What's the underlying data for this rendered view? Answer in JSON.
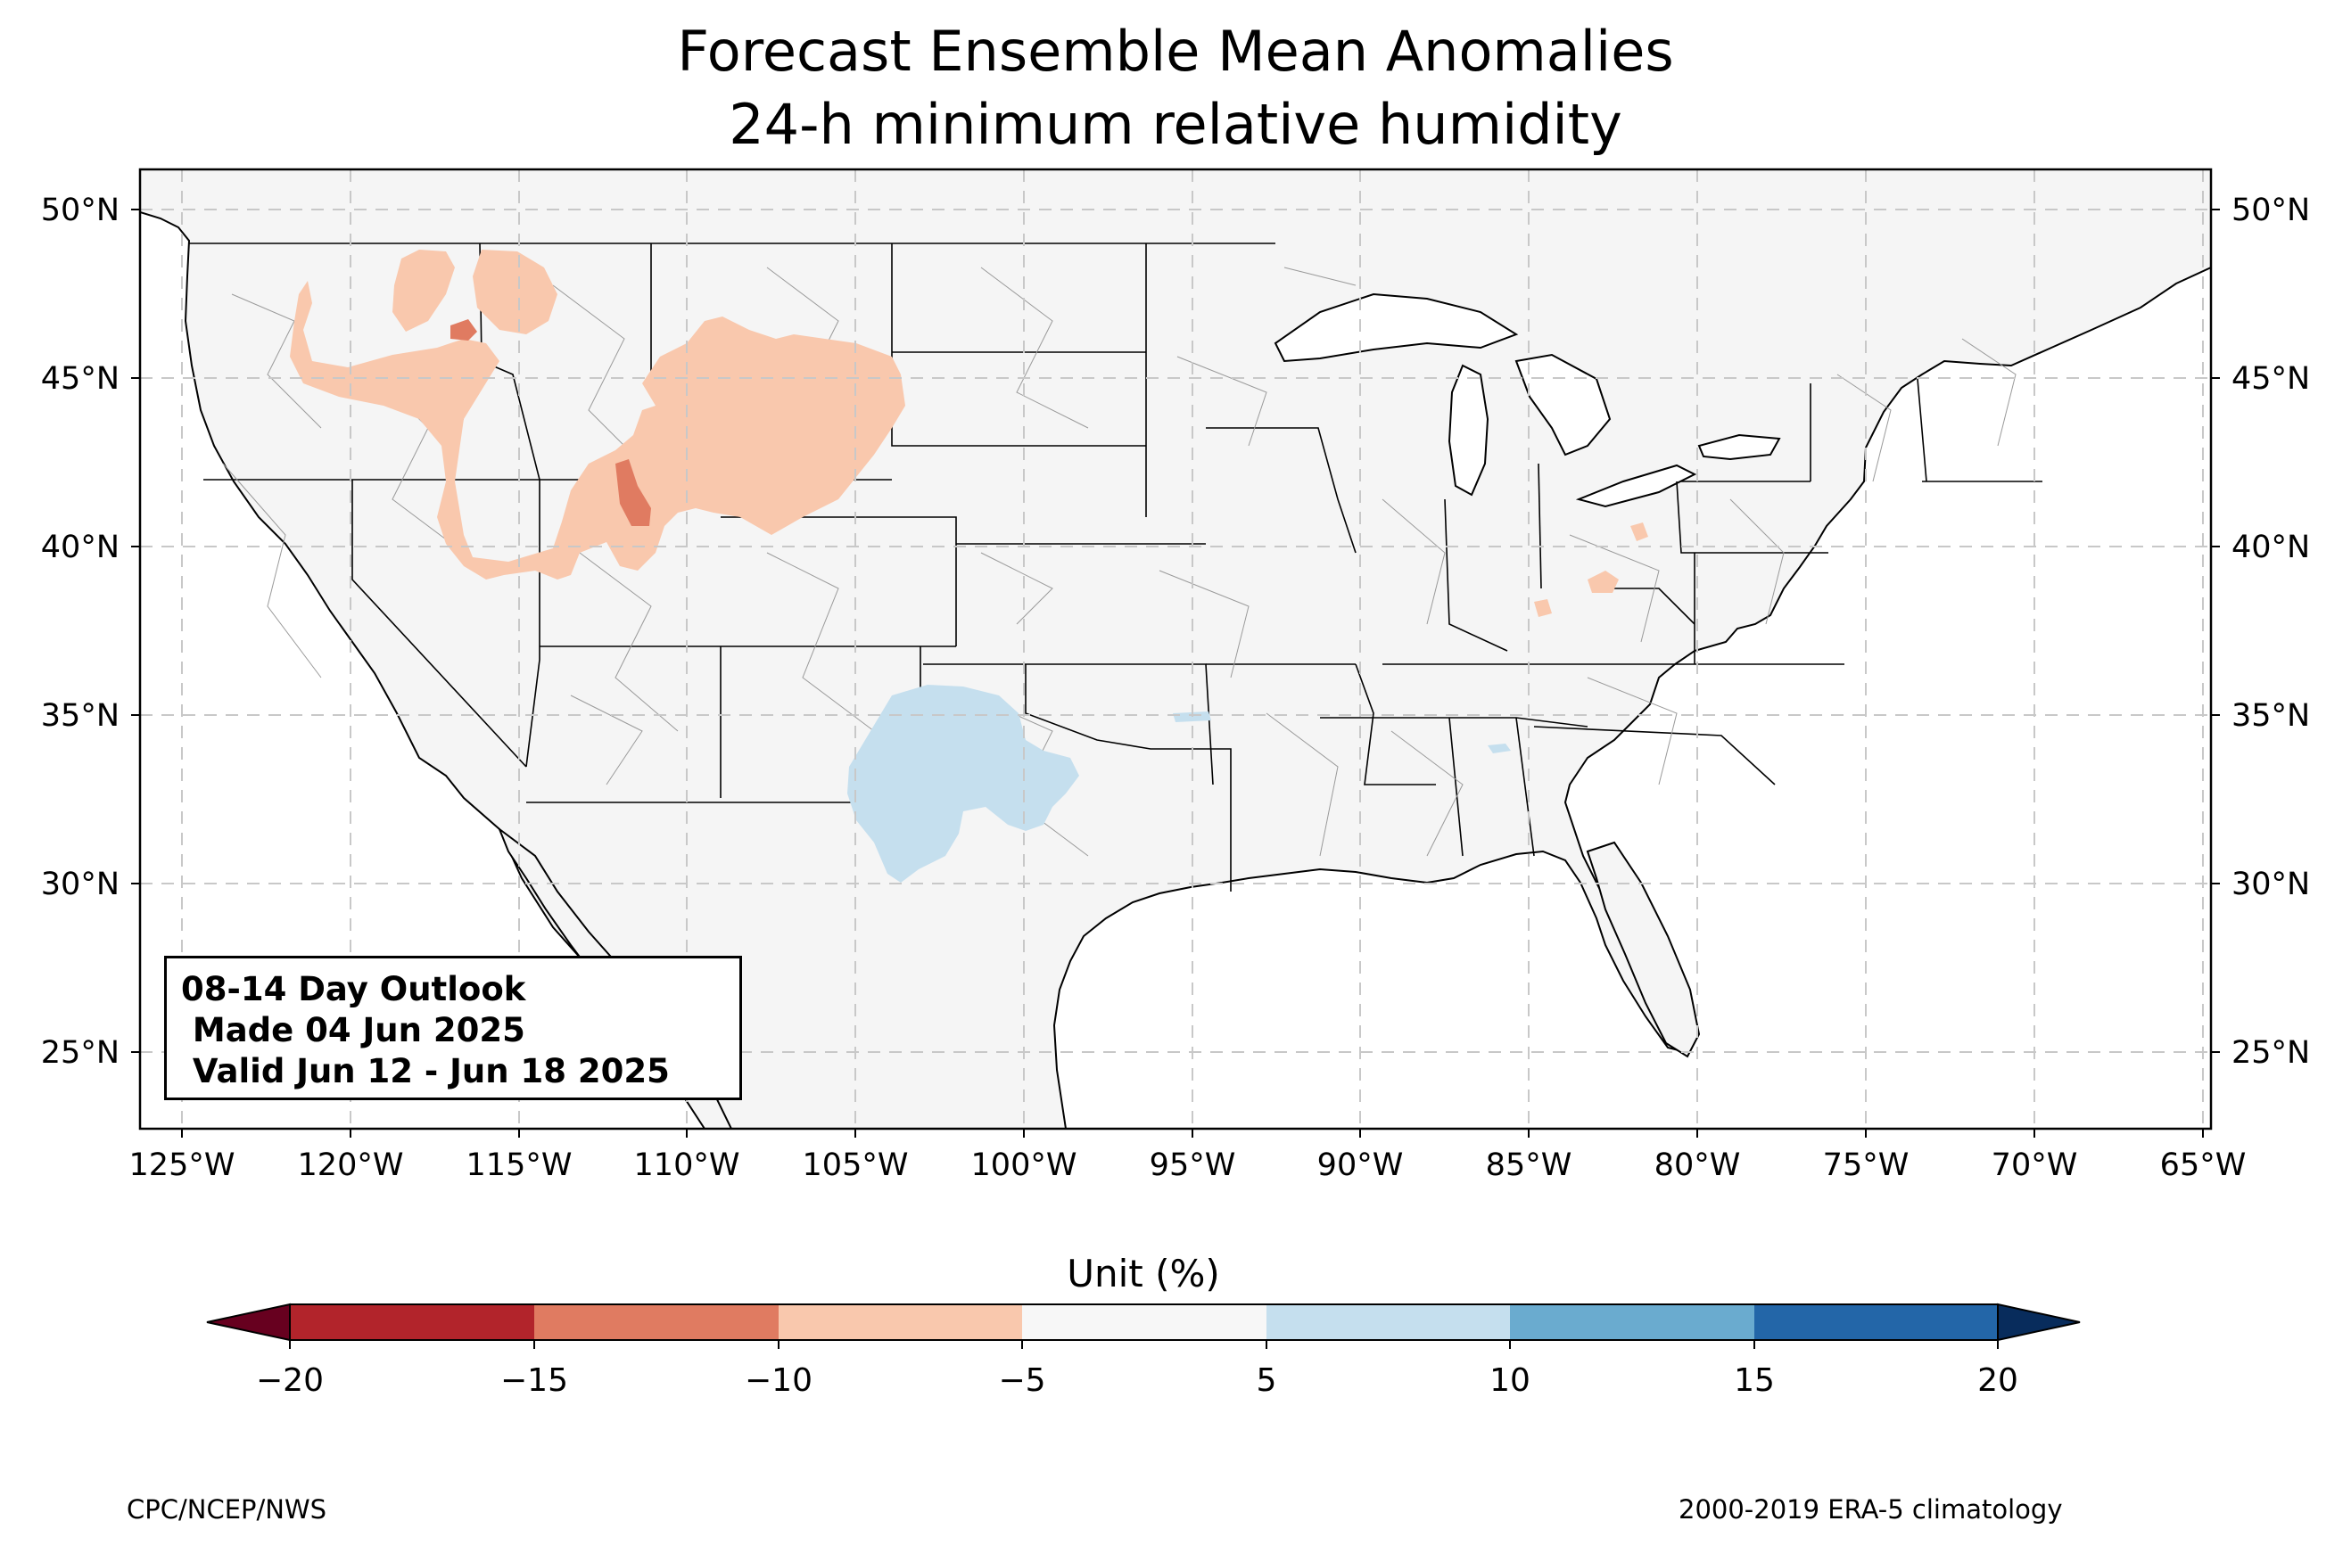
{
  "title": {
    "line1": "Forecast Ensemble Mean Anomalies",
    "line2": "24-h minimum relative humidity"
  },
  "map": {
    "region": "Contiguous United States",
    "lon_range": [
      -126.3,
      -64.9
    ],
    "lat_range": [
      22.8,
      51.1
    ],
    "lon_ticks": [
      "125°W",
      "120°W",
      "115°W",
      "110°W",
      "105°W",
      "100°W",
      "95°W",
      "90°W",
      "85°W",
      "80°W",
      "75°W",
      "70°W",
      "65°W"
    ],
    "lat_ticks": [
      "25°N",
      "30°N",
      "35°N",
      "40°N",
      "45°N",
      "50°N"
    ],
    "gridlines": true,
    "land_color": "#f5f5f5",
    "anomaly_areas": [
      {
        "category": "-10 to -5",
        "color": "#f9c8ad",
        "region": "Northern Rockies / Great Basin / High Plains"
      },
      {
        "category": "-15 to -10",
        "color": "#e07b61",
        "region": "Southern Wyoming / Northern Idaho spots"
      },
      {
        "category": "-10 to -5",
        "color": "#f9c8ad",
        "region": "Ohio Valley spots"
      },
      {
        "category": "5 to 10",
        "color": "#c5dfee",
        "region": "Southern High Plains (eastern New Mexico / West Texas)"
      }
    ]
  },
  "outlook_box": {
    "line1": "08-14 Day Outlook",
    "line2": " Made 04 Jun 2025",
    "line3": " Valid Jun 12 - Jun 18 2025"
  },
  "colorbar": {
    "label": "Unit (%)",
    "ticks": [
      "−20",
      "−15",
      "−10",
      "−5",
      "5",
      "10",
      "15",
      "20"
    ],
    "colors": [
      "#b2242b",
      "#e07b61",
      "#f9c8ad",
      "#f7f7f7",
      "#c5dfee",
      "#6aabcf",
      "#2366a8"
    ],
    "under_color": "#67001f",
    "over_color": "#082c5c"
  },
  "footer": {
    "left": "CPC/NCEP/NWS",
    "right": "2000-2019 ERA-5 climatology"
  }
}
